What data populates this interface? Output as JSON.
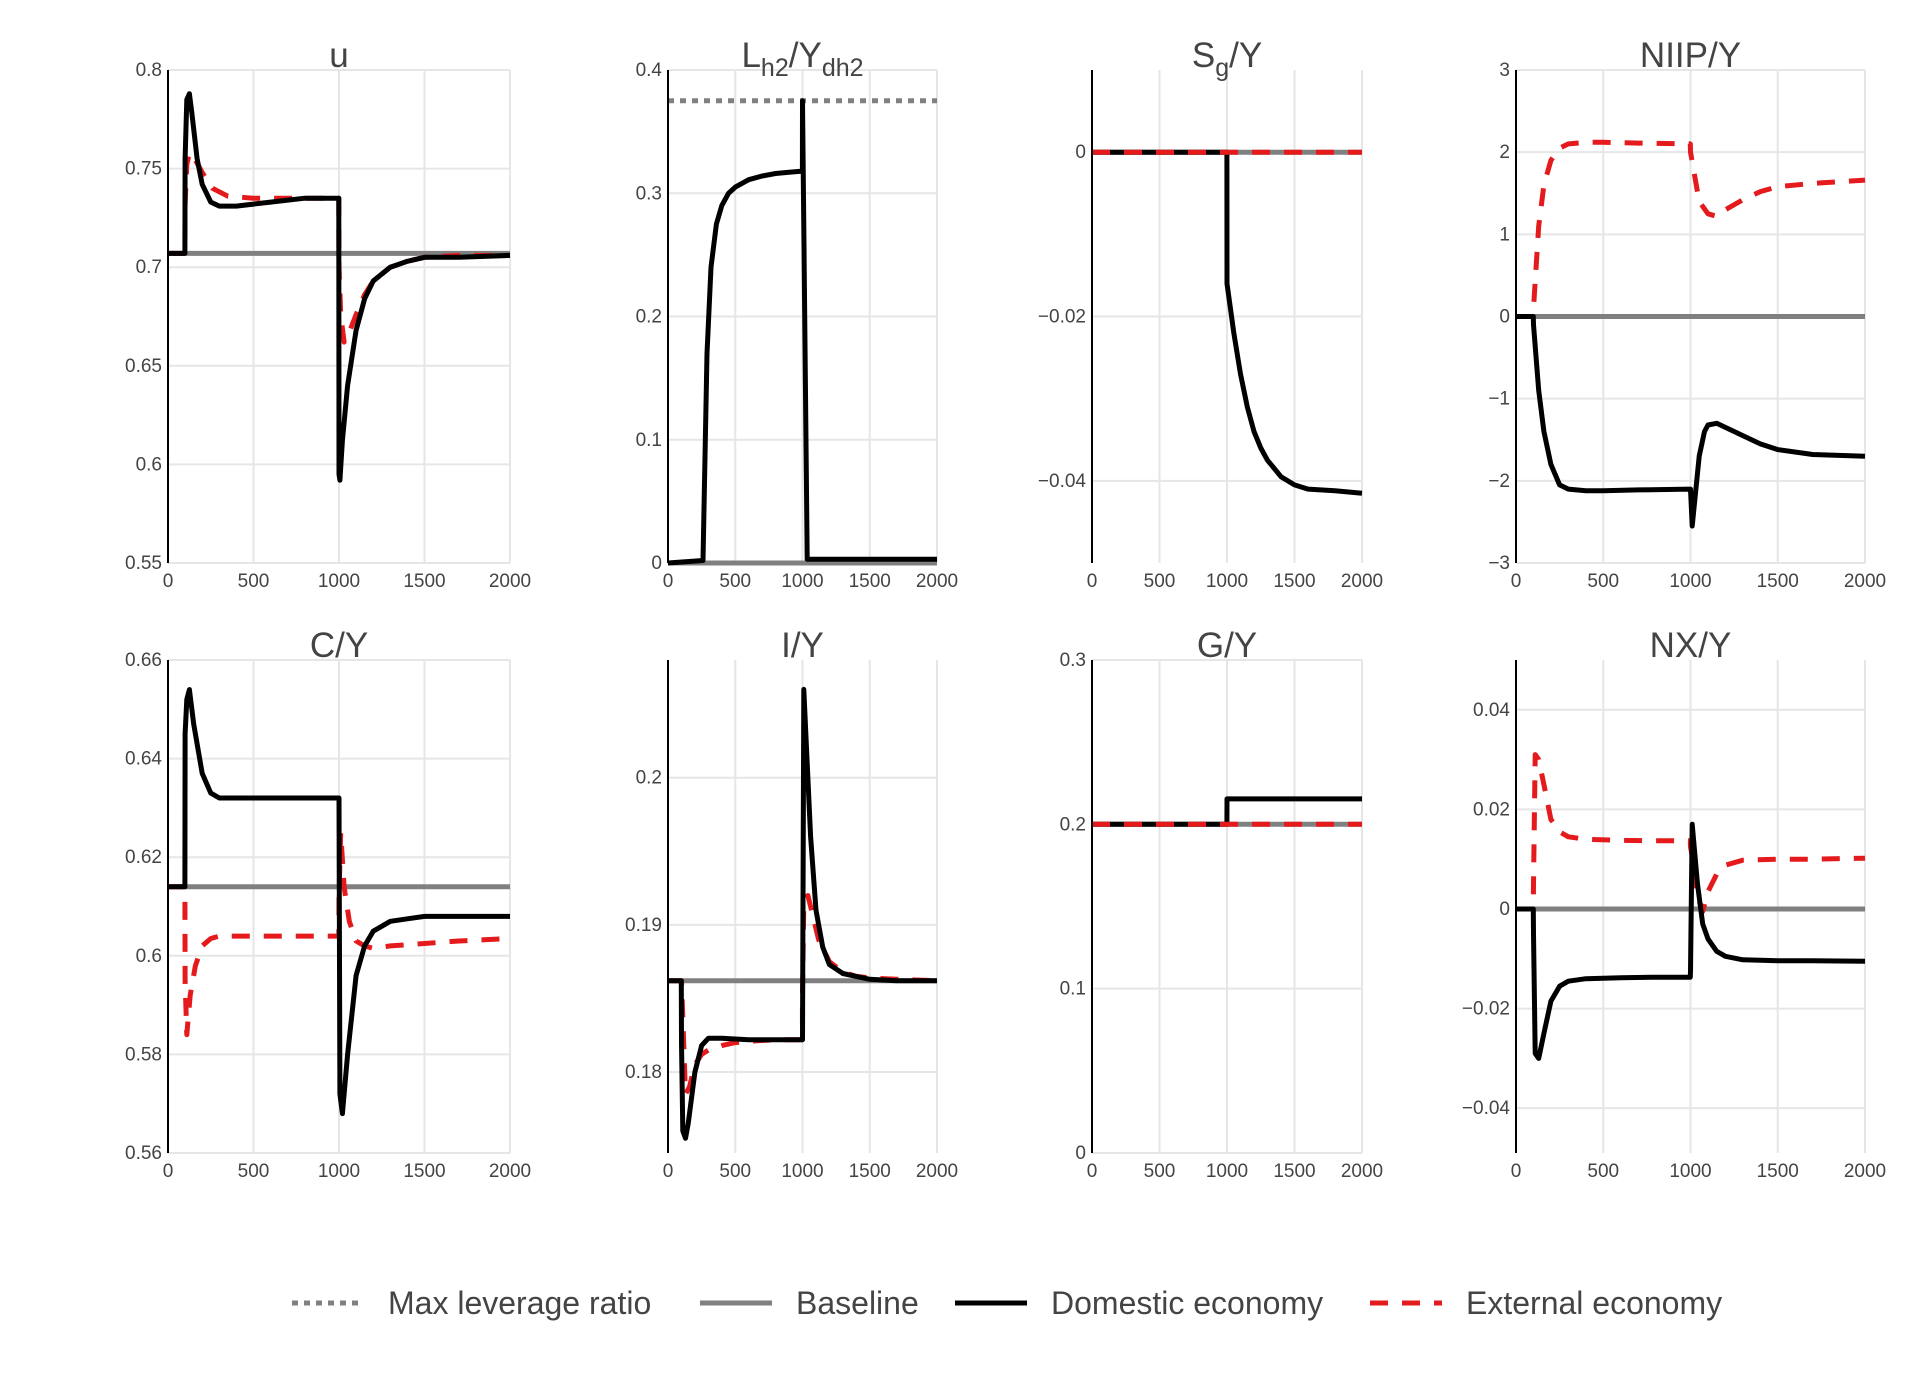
{
  "legend": [
    {
      "key": "max",
      "label": "Max leverage ratio",
      "color": "#808080",
      "dash": "6 6",
      "width": 5
    },
    {
      "key": "base",
      "label": "Baseline",
      "color": "#808080",
      "dash": "",
      "width": 5
    },
    {
      "key": "dom",
      "label": "Domestic economy",
      "color": "#000000",
      "dash": "",
      "width": 5
    },
    {
      "key": "ext",
      "label": "External economy",
      "color": "#e41a1c",
      "dash": "18 14",
      "width": 5
    }
  ],
  "chart_data": [
    {
      "type": "line",
      "title": "u",
      "ylim": [
        0.55,
        0.8
      ],
      "yticks": [
        "0.55",
        "0.6",
        "0.65",
        "0.7",
        "0.75",
        "0.8"
      ],
      "xlim": [
        0,
        2000
      ],
      "xticks": [
        "0",
        "500",
        "1000",
        "1500",
        "2000"
      ],
      "series": [
        {
          "key": "base",
          "x": [
            0,
            2000
          ],
          "y": [
            0.707,
            0.707
          ]
        },
        {
          "key": "ext",
          "x": [
            0,
            99,
            100,
            110,
            125,
            150,
            200,
            260,
            350,
            500,
            700,
            999,
            1000,
            1010,
            1030,
            1060,
            1100,
            1150,
            1200,
            1300,
            1400,
            1500,
            1700,
            2000
          ],
          "y": [
            0.707,
            0.707,
            0.732,
            0.752,
            0.758,
            0.756,
            0.748,
            0.74,
            0.736,
            0.735,
            0.735,
            0.735,
            0.7,
            0.676,
            0.662,
            0.667,
            0.676,
            0.686,
            0.693,
            0.7,
            0.703,
            0.705,
            0.706,
            0.706
          ]
        },
        {
          "key": "dom",
          "x": [
            0,
            99,
            100,
            110,
            125,
            140,
            170,
            200,
            250,
            300,
            400,
            600,
            800,
            999,
            1000,
            1005,
            1020,
            1050,
            1100,
            1150,
            1200,
            1300,
            1400,
            1500,
            1700,
            2000
          ],
          "y": [
            0.707,
            0.707,
            0.755,
            0.785,
            0.788,
            0.778,
            0.755,
            0.742,
            0.733,
            0.731,
            0.731,
            0.733,
            0.735,
            0.735,
            0.595,
            0.592,
            0.612,
            0.64,
            0.668,
            0.684,
            0.693,
            0.7,
            0.703,
            0.705,
            0.705,
            0.706
          ]
        }
      ]
    },
    {
      "type": "line",
      "title": "L",
      "title_sub1": "h2",
      "title_mid": "/Y",
      "title_sub2": "dh2",
      "ylim": [
        0,
        0.4
      ],
      "yticks": [
        "0",
        "0.1",
        "0.2",
        "0.3",
        "0.4"
      ],
      "xlim": [
        0,
        2000
      ],
      "xticks": [
        "0",
        "500",
        "1000",
        "1500",
        "2000"
      ],
      "series": [
        {
          "key": "max",
          "x": [
            0,
            2000
          ],
          "y": [
            0.375,
            0.375
          ]
        },
        {
          "key": "base",
          "x": [
            0,
            2000
          ],
          "y": [
            0,
            0
          ]
        },
        {
          "key": "dom",
          "x": [
            0,
            260,
            290,
            320,
            360,
            400,
            450,
            500,
            600,
            700,
            800,
            900,
            999,
            1000,
            1035,
            2000
          ],
          "y": [
            0,
            0.002,
            0.17,
            0.24,
            0.275,
            0.29,
            0.3,
            0.305,
            0.311,
            0.314,
            0.316,
            0.317,
            0.318,
            0.375,
            0.003,
            0.003
          ]
        }
      ]
    },
    {
      "type": "line",
      "title": "S",
      "title_sub1": "g",
      "title_mid": "/Y",
      "title_sub2": "",
      "ylim": [
        -0.05,
        0.01
      ],
      "yticks": [
        "−0.04",
        "−0.02",
        "0"
      ],
      "ytick_values": [
        -0.04,
        -0.02,
        0
      ],
      "xlim": [
        0,
        2000
      ],
      "xticks": [
        "0",
        "500",
        "1000",
        "1500",
        "2000"
      ],
      "series": [
        {
          "key": "base",
          "x": [
            0,
            2000
          ],
          "y": [
            0,
            0
          ]
        },
        {
          "key": "dom",
          "x": [
            0,
            999,
            1000,
            1050,
            1100,
            1150,
            1200,
            1250,
            1300,
            1350,
            1400,
            1500,
            1600,
            1800,
            2000
          ],
          "y": [
            0,
            0,
            -0.016,
            -0.022,
            -0.027,
            -0.031,
            -0.034,
            -0.036,
            -0.0375,
            -0.0385,
            -0.0395,
            -0.0405,
            -0.041,
            -0.0412,
            -0.0415
          ]
        },
        {
          "key": "ext",
          "x": [
            0,
            2000
          ],
          "y": [
            0,
            0
          ]
        }
      ]
    },
    {
      "type": "line",
      "title": "NIIP/Y",
      "ylim": [
        -3,
        3
      ],
      "yticks": [
        "−3",
        "−2",
        "−1",
        "0",
        "1",
        "2",
        "3"
      ],
      "ytick_values": [
        -3,
        -2,
        -1,
        0,
        1,
        2,
        3
      ],
      "xlim": [
        0,
        2000
      ],
      "xticks": [
        "0",
        "500",
        "1000",
        "1500",
        "2000"
      ],
      "series": [
        {
          "key": "base",
          "x": [
            0,
            2000
          ],
          "y": [
            0,
            0
          ]
        },
        {
          "key": "ext",
          "x": [
            0,
            99,
            100,
            130,
            160,
            200,
            250,
            300,
            400,
            500,
            700,
            999,
            1000,
            1050,
            1100,
            1150,
            1200,
            1300,
            1400,
            1500,
            1700,
            2000
          ],
          "y": [
            0,
            0,
            0.1,
            1.1,
            1.6,
            1.9,
            2.05,
            2.1,
            2.12,
            2.12,
            2.11,
            2.1,
            2.0,
            1.4,
            1.25,
            1.22,
            1.3,
            1.42,
            1.52,
            1.58,
            1.62,
            1.66
          ]
        },
        {
          "key": "dom",
          "x": [
            0,
            99,
            100,
            130,
            160,
            200,
            250,
            300,
            400,
            500,
            700,
            999,
            1000,
            1010,
            1050,
            1080,
            1100,
            1150,
            1200,
            1300,
            1400,
            1500,
            1700,
            2000
          ],
          "y": [
            0,
            0,
            -0.1,
            -0.9,
            -1.4,
            -1.8,
            -2.05,
            -2.1,
            -2.12,
            -2.12,
            -2.11,
            -2.1,
            -2.1,
            -2.55,
            -1.7,
            -1.4,
            -1.32,
            -1.3,
            -1.35,
            -1.45,
            -1.55,
            -1.62,
            -1.68,
            -1.7
          ]
        }
      ]
    },
    {
      "type": "line",
      "title": "C/Y",
      "ylim": [
        0.56,
        0.66
      ],
      "yticks": [
        "0.56",
        "0.58",
        "0.6",
        "0.62",
        "0.64",
        "0.66"
      ],
      "xlim": [
        0,
        2000
      ],
      "xticks": [
        "0",
        "500",
        "1000",
        "1500",
        "2000"
      ],
      "series": [
        {
          "key": "base",
          "x": [
            0,
            2000
          ],
          "y": [
            0.614,
            0.614
          ]
        },
        {
          "key": "ext",
          "x": [
            0,
            99,
            100,
            110,
            130,
            160,
            200,
            250,
            300,
            400,
            600,
            800,
            999,
            1000,
            1010,
            1030,
            1060,
            1100,
            1150,
            1200,
            1300,
            1500,
            1700,
            2000
          ],
          "y": [
            0.614,
            0.614,
            0.595,
            0.584,
            0.592,
            0.598,
            0.602,
            0.6035,
            0.604,
            0.604,
            0.604,
            0.604,
            0.604,
            0.612,
            0.625,
            0.614,
            0.607,
            0.603,
            0.602,
            0.6015,
            0.602,
            0.6025,
            0.603,
            0.6035
          ]
        },
        {
          "key": "dom",
          "x": [
            0,
            99,
            100,
            110,
            125,
            150,
            200,
            250,
            300,
            400,
            600,
            800,
            999,
            1000,
            1005,
            1020,
            1050,
            1100,
            1150,
            1200,
            1300,
            1400,
            1500,
            1700,
            2000
          ],
          "y": [
            0.614,
            0.614,
            0.645,
            0.652,
            0.654,
            0.647,
            0.637,
            0.633,
            0.632,
            0.632,
            0.632,
            0.632,
            0.632,
            0.632,
            0.572,
            0.568,
            0.58,
            0.596,
            0.602,
            0.605,
            0.607,
            0.6075,
            0.608,
            0.608,
            0.608
          ]
        }
      ]
    },
    {
      "type": "line",
      "title": "I/Y",
      "ylim": [
        0.1745,
        0.208
      ],
      "yticks": [
        "0.18",
        "0.19",
        "0.2"
      ],
      "ytick_values": [
        0.18,
        0.19,
        0.2
      ],
      "xlim": [
        0,
        2000
      ],
      "xticks": [
        "0",
        "500",
        "1000",
        "1500",
        "2000"
      ],
      "series": [
        {
          "key": "base",
          "x": [
            0,
            2000
          ],
          "y": [
            0.1862,
            0.1862
          ]
        },
        {
          "key": "ext",
          "x": [
            0,
            99,
            100,
            130,
            160,
            200,
            250,
            300,
            400,
            500,
            600,
            800,
            999,
            1000,
            1010,
            1040,
            1080,
            1120,
            1200,
            1300,
            1400,
            1500,
            1700,
            2000
          ],
          "y": [
            0.1862,
            0.1862,
            0.1862,
            0.1785,
            0.179,
            0.1805,
            0.1812,
            0.1815,
            0.1818,
            0.182,
            0.1821,
            0.1822,
            0.1822,
            0.1855,
            0.1915,
            0.192,
            0.1905,
            0.189,
            0.1875,
            0.1868,
            0.1865,
            0.1864,
            0.1863,
            0.1862
          ]
        },
        {
          "key": "dom",
          "x": [
            0,
            99,
            100,
            110,
            130,
            150,
            200,
            250,
            300,
            400,
            600,
            800,
            999,
            1000,
            1010,
            1030,
            1060,
            1100,
            1150,
            1200,
            1300,
            1400,
            1500,
            1700,
            2000
          ],
          "y": [
            0.1862,
            0.1862,
            0.182,
            0.176,
            0.1755,
            0.1765,
            0.18,
            0.1818,
            0.1823,
            0.1823,
            0.1822,
            0.1822,
            0.1822,
            0.1822,
            0.206,
            0.202,
            0.196,
            0.191,
            0.1885,
            0.1873,
            0.1867,
            0.1865,
            0.1863,
            0.1862,
            0.1862
          ]
        }
      ]
    },
    {
      "type": "line",
      "title": "G/Y",
      "ylim": [
        0,
        0.3
      ],
      "yticks": [
        "0",
        "0.1",
        "0.2",
        "0.3"
      ],
      "xlim": [
        0,
        2000
      ],
      "xticks": [
        "0",
        "500",
        "1000",
        "1500",
        "2000"
      ],
      "series": [
        {
          "key": "base",
          "x": [
            0,
            2000
          ],
          "y": [
            0.2,
            0.2
          ]
        },
        {
          "key": "dom",
          "x": [
            0,
            999,
            1000,
            2000
          ],
          "y": [
            0.2,
            0.2,
            0.2155,
            0.2155
          ]
        },
        {
          "key": "ext",
          "x": [
            0,
            2000
          ],
          "y": [
            0.2,
            0.2
          ]
        }
      ]
    },
    {
      "type": "line",
      "title": "NX/Y",
      "ylim": [
        -0.049,
        0.05
      ],
      "yticks": [
        "−0.04",
        "−0.02",
        "0",
        "0.02",
        "0.04"
      ],
      "ytick_values": [
        -0.04,
        -0.02,
        0,
        0.02,
        0.04
      ],
      "xlim": [
        0,
        2000
      ],
      "xticks": [
        "0",
        "500",
        "1000",
        "1500",
        "2000"
      ],
      "series": [
        {
          "key": "base",
          "x": [
            0,
            2000
          ],
          "y": [
            0,
            0
          ]
        },
        {
          "key": "ext",
          "x": [
            0,
            99,
            100,
            110,
            130,
            160,
            200,
            250,
            300,
            400,
            600,
            800,
            999,
            1000,
            1010,
            1040,
            1070,
            1100,
            1150,
            1200,
            1300,
            1500,
            1700,
            2000
          ],
          "y": [
            0,
            0,
            0.005,
            0.031,
            0.03,
            0.025,
            0.018,
            0.0155,
            0.0145,
            0.014,
            0.0138,
            0.0137,
            0.0137,
            0.0125,
            0.0105,
            0.0025,
            -0.0005,
            0.0035,
            0.007,
            0.0088,
            0.0098,
            0.01,
            0.01,
            0.0102
          ]
        },
        {
          "key": "dom",
          "x": [
            0,
            99,
            100,
            110,
            130,
            160,
            200,
            250,
            300,
            400,
            600,
            800,
            999,
            1000,
            1010,
            1040,
            1070,
            1100,
            1150,
            1200,
            1300,
            1500,
            1700,
            2000
          ],
          "y": [
            0,
            0,
            -0.005,
            -0.029,
            -0.03,
            -0.025,
            -0.0185,
            -0.0155,
            -0.0145,
            -0.014,
            -0.0138,
            -0.0137,
            -0.0137,
            -0.0125,
            0.017,
            0.005,
            -0.003,
            -0.006,
            -0.0085,
            -0.0095,
            -0.0102,
            -0.0104,
            -0.0104,
            -0.0105
          ]
        }
      ]
    }
  ]
}
